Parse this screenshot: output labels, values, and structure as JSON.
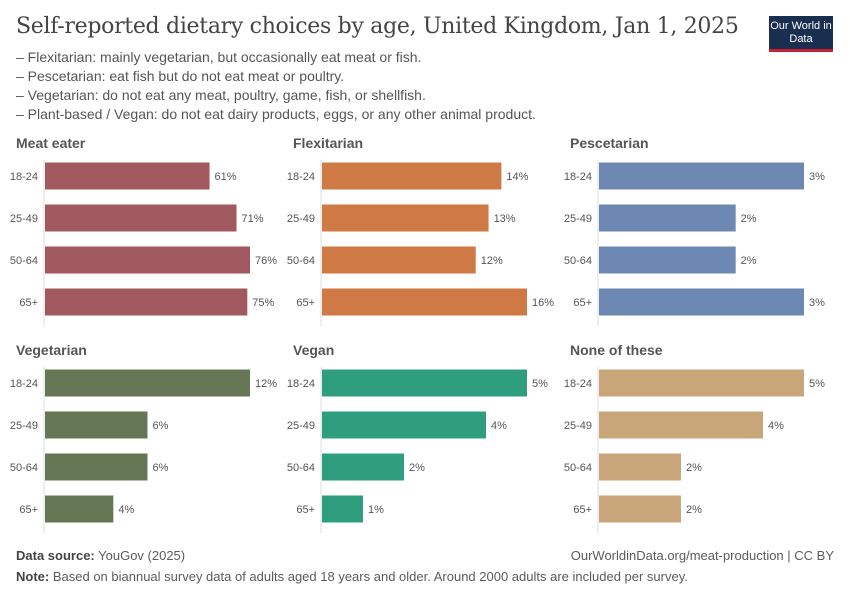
{
  "header": {
    "title": "Self-reported dietary choices by age, United Kingdom, Jan 1, 2025",
    "subtitle_lines": [
      "– Flexitarian: mainly vegetarian, but occasionally eat meat or fish.",
      "– Pescetarian: eat fish but do not eat meat or poultry.",
      "– Vegetarian: do not eat any meat, poultry, game, fish, or shellfish.",
      "– Plant-based / Vegan: do not eat dairy products, eggs, or any other animal product."
    ],
    "logo": "Our World in Data"
  },
  "footer": {
    "source_label": "Data source:",
    "source": "YouGov (2025)",
    "url": "OurWorldinData.org/meat-production | CC BY",
    "note_label": "Note:",
    "note": "Based on biannual survey data of adults aged 18 years and older. Around 2000 adults are included per survey."
  },
  "chart_data": [
    {
      "type": "bar",
      "title": "Meat eater",
      "categories": [
        "18-24",
        "25-49",
        "50-64",
        "65+"
      ],
      "values": [
        61,
        71,
        76,
        75
      ],
      "unit": "%",
      "color": "#a2585f"
    },
    {
      "type": "bar",
      "title": "Flexitarian",
      "categories": [
        "18-24",
        "25-49",
        "50-64",
        "65+"
      ],
      "values": [
        14,
        13,
        12,
        16
      ],
      "unit": "%",
      "color": "#cf7a45"
    },
    {
      "type": "bar",
      "title": "Pescetarian",
      "categories": [
        "18-24",
        "25-49",
        "50-64",
        "65+"
      ],
      "values": [
        3,
        2,
        2,
        3
      ],
      "unit": "%",
      "color": "#6d88b3"
    },
    {
      "type": "bar",
      "title": "Vegetarian",
      "categories": [
        "18-24",
        "25-49",
        "50-64",
        "65+"
      ],
      "values": [
        12,
        6,
        6,
        4
      ],
      "unit": "%",
      "color": "#667756"
    },
    {
      "type": "bar",
      "title": "Vegan",
      "categories": [
        "18-24",
        "25-49",
        "50-64",
        "65+"
      ],
      "values": [
        5,
        4,
        2,
        1
      ],
      "unit": "%",
      "color": "#2f9e7f"
    },
    {
      "type": "bar",
      "title": "None of these",
      "categories": [
        "18-24",
        "25-49",
        "50-64",
        "65+"
      ],
      "values": [
        5,
        4,
        2,
        2
      ],
      "unit": "%",
      "color": "#c9a67a"
    }
  ]
}
